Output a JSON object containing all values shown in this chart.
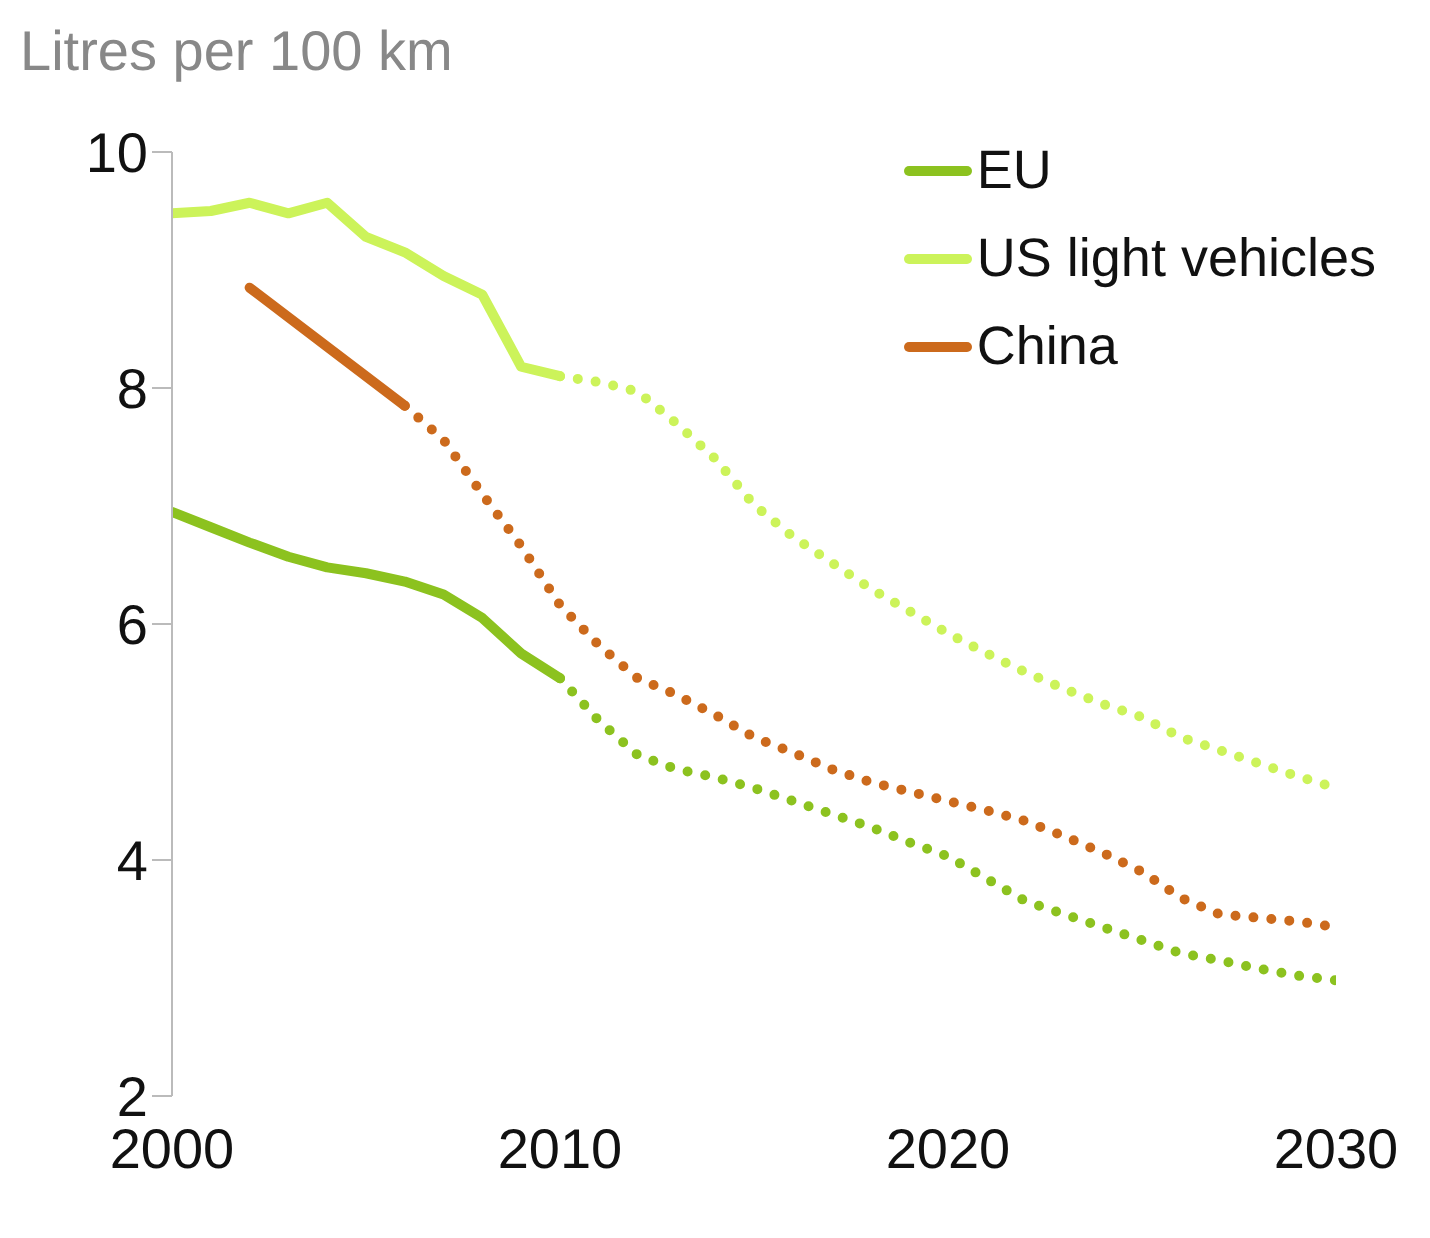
{
  "chart_data": {
    "type": "line",
    "ylabel": "Litres per 100 km",
    "xlim": [
      2000,
      2030
    ],
    "xticks": [
      2000,
      2010,
      2020,
      2030
    ],
    "ylim": [
      2,
      10
    ],
    "yticks": [
      2,
      4,
      6,
      8,
      10
    ],
    "grid": false,
    "legend": "top right",
    "marker": "none",
    "series": [
      {
        "name": "EU",
        "color": "#8cc21f",
        "line_style": "solid",
        "x": [
          2000,
          2001,
          2002,
          2003,
          2004,
          2005,
          2006,
          2007,
          2008,
          2009,
          2010
        ],
        "values": [
          6.95,
          6.82,
          6.69,
          6.57,
          6.48,
          6.43,
          6.36,
          6.25,
          6.05,
          5.75,
          5.54
        ]
      },
      {
        "name": "US light vehicles",
        "color": "#ccf35a",
        "line_style": "solid",
        "x": [
          2000,
          2001,
          2002,
          2003,
          2004,
          2005,
          2006,
          2007,
          2008,
          2009,
          2010
        ],
        "values": [
          9.48,
          9.5,
          9.57,
          9.48,
          9.57,
          9.28,
          9.15,
          8.95,
          8.79,
          8.18,
          8.1
        ]
      },
      {
        "name": "China",
        "color": "#cc6a1c",
        "line_style": "solid",
        "x": [
          2002,
          2004,
          2006
        ],
        "values": [
          8.85,
          8.35,
          7.85
        ]
      },
      {
        "color": "#8cc21f",
        "line_style": "dotted",
        "x": [
          2010,
          2011,
          2012,
          2013,
          2014,
          2015,
          2016,
          2017,
          2018,
          2019,
          2020,
          2021,
          2022,
          2023,
          2024,
          2025,
          2026,
          2027,
          2028,
          2029,
          2030
        ],
        "values": [
          5.54,
          5.18,
          4.89,
          4.77,
          4.7,
          4.61,
          4.5,
          4.39,
          4.28,
          4.15,
          4.03,
          3.84,
          3.65,
          3.54,
          3.43,
          3.32,
          3.21,
          3.15,
          3.08,
          3.02,
          2.98
        ]
      },
      {
        "color": "#ccf35a",
        "line_style": "dotted",
        "x": [
          2010,
          2011,
          2012,
          2013,
          2014,
          2015,
          2016,
          2017,
          2018,
          2019,
          2020,
          2021,
          2022,
          2023,
          2024,
          2025,
          2026,
          2027,
          2028,
          2029,
          2030
        ],
        "values": [
          8.1,
          8.05,
          7.97,
          7.7,
          7.4,
          7.01,
          6.74,
          6.52,
          6.3,
          6.11,
          5.92,
          5.75,
          5.59,
          5.45,
          5.32,
          5.21,
          5.04,
          4.93,
          4.82,
          4.71,
          4.61
        ]
      },
      {
        "color": "#cc6a1c",
        "line_style": "dotted",
        "x": [
          2006,
          2007,
          2008,
          2009,
          2010,
          2011,
          2012,
          2013,
          2014,
          2015,
          2016,
          2017,
          2018,
          2019,
          2020,
          2021,
          2022,
          2023,
          2024,
          2025,
          2026,
          2027,
          2028,
          2029,
          2030
        ],
        "values": [
          7.85,
          7.56,
          7.1,
          6.66,
          6.16,
          5.82,
          5.54,
          5.4,
          5.23,
          5.04,
          4.91,
          4.77,
          4.66,
          4.58,
          4.5,
          4.42,
          4.33,
          4.2,
          4.06,
          3.9,
          3.68,
          3.54,
          3.51,
          3.48,
          3.43
        ]
      }
    ]
  }
}
